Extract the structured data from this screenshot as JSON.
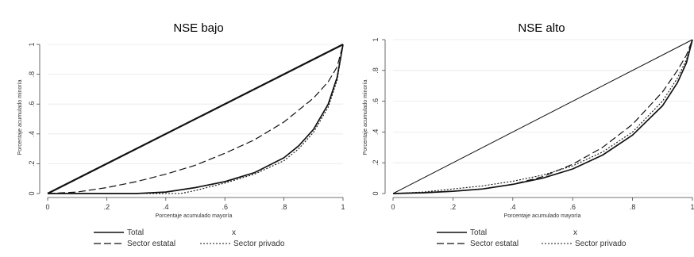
{
  "chart_data": [
    {
      "type": "line",
      "title": "NSE bajo",
      "xlabel": "Porcentaje acumulado mayoría",
      "ylabel": "Porcentaje acumulado minoría",
      "xlim": [
        0,
        1
      ],
      "ylim": [
        0,
        1
      ],
      "x_ticks": [
        "0",
        ".2",
        ".4",
        ".6",
        ".8",
        "1"
      ],
      "y_ticks": [
        "0",
        ".2",
        ".4",
        ".6",
        ".8",
        "1"
      ],
      "grid": true,
      "legend_placement": "bottom",
      "legend": [
        "Total",
        "x",
        "Sector estatal",
        "Sector privado"
      ],
      "series": [
        {
          "name": "x",
          "style": "solid-thick",
          "x": [
            0,
            1
          ],
          "y": [
            0,
            1
          ]
        },
        {
          "name": "Total",
          "style": "solid",
          "x": [
            0,
            0.3,
            0.4,
            0.5,
            0.6,
            0.7,
            0.8,
            0.85,
            0.9,
            0.95,
            0.98,
            1
          ],
          "y": [
            0,
            0,
            0.01,
            0.04,
            0.08,
            0.14,
            0.24,
            0.32,
            0.43,
            0.6,
            0.78,
            1
          ]
        },
        {
          "name": "Sector estatal",
          "style": "dashed",
          "x": [
            0,
            0.1,
            0.2,
            0.3,
            0.4,
            0.5,
            0.6,
            0.7,
            0.8,
            0.9,
            0.95,
            0.98,
            1
          ],
          "y": [
            0,
            0.01,
            0.04,
            0.08,
            0.13,
            0.19,
            0.27,
            0.36,
            0.48,
            0.64,
            0.75,
            0.85,
            1
          ]
        },
        {
          "name": "Sector privado",
          "style": "dotted",
          "x": [
            0,
            0.3,
            0.45,
            0.5,
            0.6,
            0.7,
            0.8,
            0.85,
            0.9,
            0.95,
            0.98,
            1
          ],
          "y": [
            0,
            0,
            0,
            0.02,
            0.07,
            0.13,
            0.22,
            0.3,
            0.41,
            0.58,
            0.76,
            1
          ]
        }
      ]
    },
    {
      "type": "line",
      "title": "NSE alto",
      "xlabel": "Porcentaje acumulado mayoría",
      "ylabel": "Porcentaje acumulado minoría",
      "xlim": [
        0,
        1
      ],
      "ylim": [
        0,
        1
      ],
      "x_ticks": [
        "0",
        ".2",
        ".4",
        ".6",
        ".8",
        "1"
      ],
      "y_ticks": [
        "0",
        ".2",
        ".4",
        ".6",
        ".8",
        "1"
      ],
      "grid": true,
      "legend_placement": "bottom",
      "legend": [
        "Total",
        "x",
        "Sector estatal",
        "Sector privado"
      ],
      "series": [
        {
          "name": "x",
          "style": "solid-thin",
          "x": [
            0,
            1
          ],
          "y": [
            0,
            1
          ]
        },
        {
          "name": "Total",
          "style": "solid",
          "x": [
            0,
            0.1,
            0.2,
            0.3,
            0.4,
            0.5,
            0.6,
            0.7,
            0.8,
            0.9,
            0.95,
            0.98,
            1
          ],
          "y": [
            0,
            0.005,
            0.015,
            0.03,
            0.06,
            0.1,
            0.16,
            0.25,
            0.38,
            0.57,
            0.72,
            0.85,
            1
          ]
        },
        {
          "name": "Sector estatal",
          "style": "dashed",
          "x": [
            0,
            0.1,
            0.2,
            0.3,
            0.4,
            0.5,
            0.6,
            0.7,
            0.8,
            0.9,
            0.95,
            0.98,
            1
          ],
          "y": [
            0,
            0.005,
            0.015,
            0.03,
            0.06,
            0.11,
            0.19,
            0.3,
            0.45,
            0.66,
            0.8,
            0.9,
            1
          ]
        },
        {
          "name": "Sector privado",
          "style": "dotted",
          "x": [
            0,
            0.1,
            0.2,
            0.3,
            0.4,
            0.5,
            0.6,
            0.7,
            0.8,
            0.9,
            0.95,
            0.98,
            1
          ],
          "y": [
            0,
            0.01,
            0.03,
            0.05,
            0.08,
            0.12,
            0.18,
            0.27,
            0.4,
            0.6,
            0.75,
            0.87,
            1
          ]
        }
      ]
    }
  ]
}
